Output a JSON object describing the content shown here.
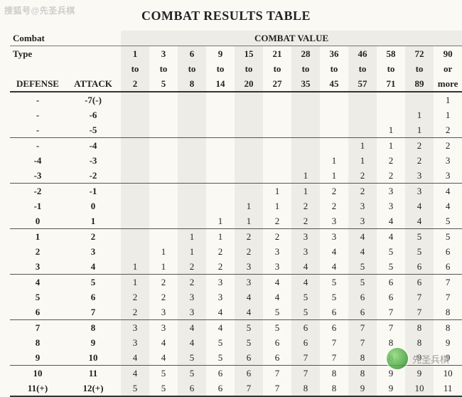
{
  "title": "COMBAT RESULTS TABLE",
  "watermarks": {
    "top_left": "搜狐号@先圣兵棋",
    "bottom_right": "先圣兵棋"
  },
  "headers": {
    "combat_label": "Combat",
    "combat_value_label": "COMBAT VALUE",
    "type_label": "Type",
    "defense_label": "DEFENSE",
    "attack_label": "ATTACK"
  },
  "styling": {
    "background_color": "#fbf9f4",
    "shade_color": "#eeece6",
    "rule_color": "#333333",
    "font_family": "Times New Roman",
    "title_fontsize_pt": 18,
    "body_fontsize_pt": 13,
    "shaded_value_columns": [
      0,
      2,
      4,
      6,
      8,
      10,
      12
    ]
  },
  "combat_value_ranges": [
    {
      "line1": "1",
      "line2": "to",
      "line3": "2"
    },
    {
      "line1": "3",
      "line2": "to",
      "line3": "5"
    },
    {
      "line1": "6",
      "line2": "to",
      "line3": "8"
    },
    {
      "line1": "9",
      "line2": "to",
      "line3": "14"
    },
    {
      "line1": "15",
      "line2": "to",
      "line3": "20"
    },
    {
      "line1": "21",
      "line2": "to",
      "line3": "27"
    },
    {
      "line1": "28",
      "line2": "to",
      "line3": "35"
    },
    {
      "line1": "36",
      "line2": "to",
      "line3": "45"
    },
    {
      "line1": "46",
      "line2": "to",
      "line3": "57"
    },
    {
      "line1": "58",
      "line2": "to",
      "line3": "71"
    },
    {
      "line1": "72",
      "line2": "to",
      "line3": "89"
    },
    {
      "line1": "90",
      "line2": "or",
      "line3": "more"
    }
  ],
  "group_separator_before_rows": [
    3,
    6,
    9,
    12,
    15,
    18,
    20
  ],
  "rows": [
    {
      "defense": "-",
      "attack": "-7(-)",
      "values": [
        "",
        "",
        "",
        "",
        "",
        "",
        "",
        "",
        "",
        "",
        "",
        "1"
      ]
    },
    {
      "defense": "-",
      "attack": "-6",
      "values": [
        "",
        "",
        "",
        "",
        "",
        "",
        "",
        "",
        "",
        "",
        "1",
        "1"
      ]
    },
    {
      "defense": "-",
      "attack": "-5",
      "values": [
        "",
        "",
        "",
        "",
        "",
        "",
        "",
        "",
        "",
        "1",
        "1",
        "2"
      ]
    },
    {
      "defense": "-",
      "attack": "-4",
      "values": [
        "",
        "",
        "",
        "",
        "",
        "",
        "",
        "",
        "1",
        "1",
        "2",
        "2"
      ]
    },
    {
      "defense": "-4",
      "attack": "-3",
      "values": [
        "",
        "",
        "",
        "",
        "",
        "",
        "",
        "1",
        "1",
        "2",
        "2",
        "3"
      ]
    },
    {
      "defense": "-3",
      "attack": "-2",
      "values": [
        "",
        "",
        "",
        "",
        "",
        "",
        "1",
        "1",
        "2",
        "2",
        "3",
        "3"
      ]
    },
    {
      "defense": "-2",
      "attack": "-1",
      "values": [
        "",
        "",
        "",
        "",
        "",
        "1",
        "1",
        "2",
        "2",
        "3",
        "3",
        "4"
      ]
    },
    {
      "defense": "-1",
      "attack": "0",
      "values": [
        "",
        "",
        "",
        "",
        "1",
        "1",
        "2",
        "2",
        "3",
        "3",
        "4",
        "4"
      ]
    },
    {
      "defense": "0",
      "attack": "1",
      "values": [
        "",
        "",
        "",
        "1",
        "1",
        "2",
        "2",
        "3",
        "3",
        "4",
        "4",
        "5"
      ]
    },
    {
      "defense": "1",
      "attack": "2",
      "values": [
        "",
        "",
        "1",
        "1",
        "2",
        "2",
        "3",
        "3",
        "4",
        "4",
        "5",
        "5"
      ]
    },
    {
      "defense": "2",
      "attack": "3",
      "values": [
        "",
        "1",
        "1",
        "2",
        "2",
        "3",
        "3",
        "4",
        "4",
        "5",
        "5",
        "6"
      ]
    },
    {
      "defense": "3",
      "attack": "4",
      "values": [
        "1",
        "1",
        "2",
        "2",
        "3",
        "3",
        "4",
        "4",
        "5",
        "5",
        "6",
        "6"
      ]
    },
    {
      "defense": "4",
      "attack": "5",
      "values": [
        "1",
        "2",
        "2",
        "3",
        "3",
        "4",
        "4",
        "5",
        "5",
        "6",
        "6",
        "7"
      ]
    },
    {
      "defense": "5",
      "attack": "6",
      "values": [
        "2",
        "2",
        "3",
        "3",
        "4",
        "4",
        "5",
        "5",
        "6",
        "6",
        "7",
        "7"
      ]
    },
    {
      "defense": "6",
      "attack": "7",
      "values": [
        "2",
        "3",
        "3",
        "4",
        "4",
        "5",
        "5",
        "6",
        "6",
        "7",
        "7",
        "8"
      ]
    },
    {
      "defense": "7",
      "attack": "8",
      "values": [
        "3",
        "3",
        "4",
        "4",
        "5",
        "5",
        "6",
        "6",
        "7",
        "7",
        "8",
        "8"
      ]
    },
    {
      "defense": "8",
      "attack": "9",
      "values": [
        "3",
        "4",
        "4",
        "5",
        "5",
        "6",
        "6",
        "7",
        "7",
        "8",
        "8",
        "9"
      ]
    },
    {
      "defense": "9",
      "attack": "10",
      "values": [
        "4",
        "4",
        "5",
        "5",
        "6",
        "6",
        "7",
        "7",
        "8",
        "8",
        "9",
        "9"
      ]
    },
    {
      "defense": "10",
      "attack": "11",
      "values": [
        "4",
        "5",
        "5",
        "6",
        "6",
        "7",
        "7",
        "8",
        "8",
        "9",
        "9",
        "10"
      ]
    },
    {
      "defense": "11(+)",
      "attack": "12(+)",
      "values": [
        "5",
        "5",
        "6",
        "6",
        "7",
        "7",
        "8",
        "8",
        "9",
        "9",
        "10",
        "11"
      ]
    }
  ]
}
